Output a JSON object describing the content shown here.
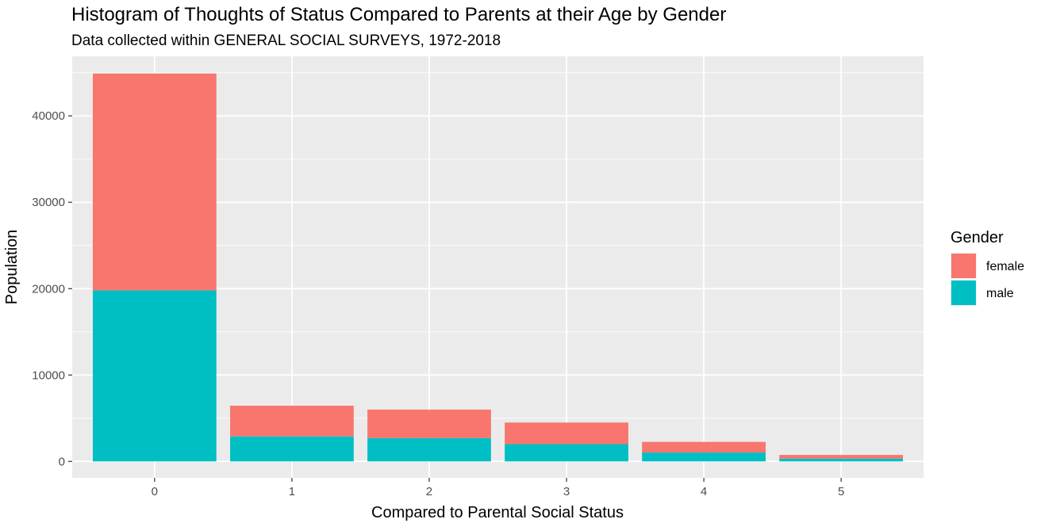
{
  "chart_data": {
    "type": "bar",
    "stacked": true,
    "title": "Histogram of Thoughts of Status Compared to Parents at their Age by Gender",
    "subtitle": "Data collected within GENERAL SOCIAL SURVEYS, 1972-2018",
    "xlabel": "Compared to Parental Social Status",
    "ylabel": "Population",
    "categories": [
      "0",
      "1",
      "2",
      "3",
      "4",
      "5"
    ],
    "series": [
      {
        "name": "female",
        "color": "#F8766D",
        "values": [
          25100,
          3550,
          3300,
          2500,
          1230,
          420
        ]
      },
      {
        "name": "male",
        "color": "#00BFC4",
        "values": [
          19800,
          2900,
          2700,
          2000,
          1030,
          330
        ]
      }
    ],
    "ylim": [
      -1900,
      46900
    ],
    "yticks": [
      0,
      10000,
      20000,
      30000,
      40000
    ],
    "ytick_labels": [
      "0",
      "10000",
      "20000",
      "30000",
      "40000"
    ],
    "grid": true,
    "legend": {
      "title": "Gender",
      "position": "right",
      "items": [
        "female",
        "male"
      ]
    },
    "panel_background": "#EBEBEB",
    "grid_color": "#FFFFFF"
  }
}
